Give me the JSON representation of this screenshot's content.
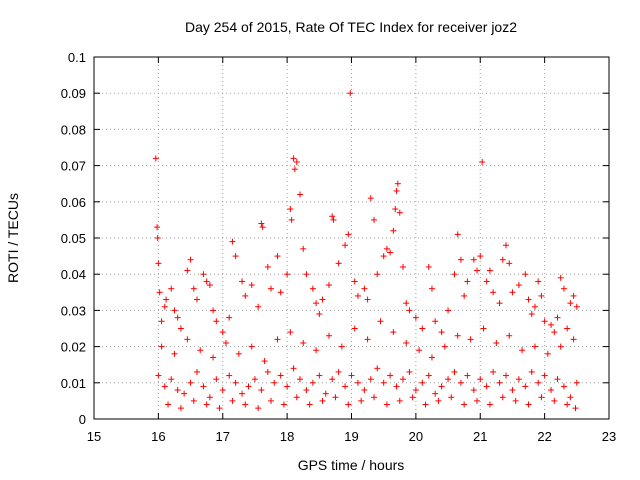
{
  "chart_data": {
    "type": "scatter",
    "title": "Day 254 of 2015, Rate Of TEC Index for receiver joz2",
    "xlabel": "GPS time / hours",
    "ylabel": "ROTI / TECUs",
    "xlim": [
      15,
      23
    ],
    "ylim": [
      0,
      0.1
    ],
    "x_ticks": [
      15,
      16,
      17,
      18,
      19,
      20,
      21,
      22,
      23
    ],
    "x_tick_labels": [
      "15",
      "16",
      "17",
      "18",
      "19",
      "20",
      "21",
      "22",
      "23"
    ],
    "y_ticks": [
      0,
      0.01,
      0.02,
      0.03,
      0.04,
      0.05,
      0.06,
      0.07,
      0.08,
      0.09,
      0.1
    ],
    "y_tick_labels": [
      "0",
      "0.01",
      "0.02",
      "0.03",
      "0.04",
      "0.05",
      "0.06",
      "0.07",
      "0.08",
      "0.09",
      "0.1"
    ],
    "grid": true,
    "marker": "+",
    "color": "#ff0000",
    "series": [
      {
        "name": "ROTI",
        "points": [
          [
            15.96,
            0.072
          ],
          [
            15.98,
            0.053
          ],
          [
            15.99,
            0.05
          ],
          [
            16.0,
            0.043
          ],
          [
            16.02,
            0.035
          ],
          [
            16.05,
            0.027
          ],
          [
            16.1,
            0.031
          ],
          [
            16.12,
            0.033
          ],
          [
            16.2,
            0.036
          ],
          [
            16.25,
            0.03
          ],
          [
            16.3,
            0.028
          ],
          [
            16.35,
            0.025
          ],
          [
            16.45,
            0.041
          ],
          [
            16.5,
            0.044
          ],
          [
            16.55,
            0.036
          ],
          [
            16.6,
            0.033
          ],
          [
            16.7,
            0.04
          ],
          [
            16.75,
            0.038
          ],
          [
            16.8,
            0.037
          ],
          [
            16.85,
            0.03
          ],
          [
            16.9,
            0.027
          ],
          [
            17.0,
            0.024
          ],
          [
            17.1,
            0.028
          ],
          [
            17.15,
            0.049
          ],
          [
            17.2,
            0.045
          ],
          [
            17.3,
            0.038
          ],
          [
            17.35,
            0.034
          ],
          [
            17.45,
            0.037
          ],
          [
            17.55,
            0.031
          ],
          [
            17.6,
            0.054
          ],
          [
            17.62,
            0.053
          ],
          [
            17.7,
            0.042
          ],
          [
            17.75,
            0.036
          ],
          [
            17.85,
            0.045
          ],
          [
            17.9,
            0.035
          ],
          [
            18.0,
            0.04
          ],
          [
            18.05,
            0.058
          ],
          [
            18.07,
            0.055
          ],
          [
            18.1,
            0.072
          ],
          [
            18.12,
            0.069
          ],
          [
            18.15,
            0.071
          ],
          [
            18.2,
            0.062
          ],
          [
            18.25,
            0.047
          ],
          [
            18.3,
            0.04
          ],
          [
            18.4,
            0.036
          ],
          [
            18.45,
            0.032
          ],
          [
            18.5,
            0.029
          ],
          [
            18.55,
            0.033
          ],
          [
            18.65,
            0.037
          ],
          [
            18.7,
            0.056
          ],
          [
            18.72,
            0.055
          ],
          [
            18.8,
            0.043
          ],
          [
            18.9,
            0.048
          ],
          [
            18.95,
            0.051
          ],
          [
            18.98,
            0.09
          ],
          [
            19.05,
            0.038
          ],
          [
            19.1,
            0.034
          ],
          [
            19.2,
            0.036
          ],
          [
            19.25,
            0.033
          ],
          [
            19.3,
            0.061
          ],
          [
            19.35,
            0.055
          ],
          [
            19.4,
            0.04
          ],
          [
            19.5,
            0.045
          ],
          [
            19.55,
            0.047
          ],
          [
            19.6,
            0.046
          ],
          [
            19.65,
            0.052
          ],
          [
            19.68,
            0.058
          ],
          [
            19.7,
            0.063
          ],
          [
            19.72,
            0.065
          ],
          [
            19.75,
            0.057
          ],
          [
            19.8,
            0.042
          ],
          [
            19.85,
            0.032
          ],
          [
            19.9,
            0.03
          ],
          [
            20.0,
            0.028
          ],
          [
            20.1,
            0.025
          ],
          [
            20.2,
            0.042
          ],
          [
            20.25,
            0.036
          ],
          [
            20.3,
            0.027
          ],
          [
            20.4,
            0.024
          ],
          [
            20.5,
            0.03
          ],
          [
            20.6,
            0.04
          ],
          [
            20.65,
            0.051
          ],
          [
            20.7,
            0.044
          ],
          [
            20.75,
            0.034
          ],
          [
            20.8,
            0.038
          ],
          [
            20.9,
            0.044
          ],
          [
            20.95,
            0.041
          ],
          [
            21.0,
            0.045
          ],
          [
            21.03,
            0.071
          ],
          [
            21.1,
            0.038
          ],
          [
            21.15,
            0.041
          ],
          [
            21.2,
            0.035
          ],
          [
            21.3,
            0.032
          ],
          [
            21.35,
            0.044
          ],
          [
            21.4,
            0.048
          ],
          [
            21.45,
            0.043
          ],
          [
            21.5,
            0.035
          ],
          [
            21.6,
            0.037
          ],
          [
            21.7,
            0.04
          ],
          [
            21.75,
            0.033
          ],
          [
            21.8,
            0.029
          ],
          [
            21.85,
            0.031
          ],
          [
            21.9,
            0.038
          ],
          [
            21.95,
            0.034
          ],
          [
            22.0,
            0.027
          ],
          [
            22.1,
            0.026
          ],
          [
            22.15,
            0.024
          ],
          [
            22.2,
            0.028
          ],
          [
            22.25,
            0.039
          ],
          [
            22.3,
            0.036
          ],
          [
            22.35,
            0.025
          ],
          [
            22.4,
            0.032
          ],
          [
            22.45,
            0.034
          ],
          [
            22.5,
            0.031
          ],
          [
            16.0,
            0.012
          ],
          [
            16.1,
            0.009
          ],
          [
            16.2,
            0.011
          ],
          [
            16.3,
            0.008
          ],
          [
            16.4,
            0.007
          ],
          [
            16.5,
            0.01
          ],
          [
            16.6,
            0.013
          ],
          [
            16.7,
            0.009
          ],
          [
            16.8,
            0.006
          ],
          [
            16.9,
            0.011
          ],
          [
            17.0,
            0.008
          ],
          [
            17.1,
            0.012
          ],
          [
            17.2,
            0.01
          ],
          [
            17.3,
            0.007
          ],
          [
            17.4,
            0.009
          ],
          [
            17.5,
            0.011
          ],
          [
            17.6,
            0.008
          ],
          [
            17.7,
            0.013
          ],
          [
            17.8,
            0.01
          ],
          [
            17.9,
            0.012
          ],
          [
            18.0,
            0.009
          ],
          [
            18.1,
            0.014
          ],
          [
            18.2,
            0.011
          ],
          [
            18.3,
            0.008
          ],
          [
            18.4,
            0.01
          ],
          [
            18.5,
            0.012
          ],
          [
            18.6,
            0.007
          ],
          [
            18.7,
            0.011
          ],
          [
            18.8,
            0.013
          ],
          [
            18.9,
            0.009
          ],
          [
            19.0,
            0.012
          ],
          [
            19.1,
            0.01
          ],
          [
            19.2,
            0.008
          ],
          [
            19.3,
            0.011
          ],
          [
            19.4,
            0.014
          ],
          [
            19.5,
            0.01
          ],
          [
            19.6,
            0.012
          ],
          [
            19.7,
            0.009
          ],
          [
            19.8,
            0.011
          ],
          [
            19.9,
            0.013
          ],
          [
            20.0,
            0.008
          ],
          [
            20.1,
            0.01
          ],
          [
            20.2,
            0.012
          ],
          [
            20.3,
            0.007
          ],
          [
            20.4,
            0.009
          ],
          [
            20.5,
            0.011
          ],
          [
            20.6,
            0.013
          ],
          [
            20.7,
            0.01
          ],
          [
            20.8,
            0.012
          ],
          [
            20.9,
            0.008
          ],
          [
            21.0,
            0.011
          ],
          [
            21.1,
            0.009
          ],
          [
            21.2,
            0.013
          ],
          [
            21.3,
            0.01
          ],
          [
            21.4,
            0.012
          ],
          [
            21.5,
            0.008
          ],
          [
            21.6,
            0.011
          ],
          [
            21.7,
            0.009
          ],
          [
            21.8,
            0.013
          ],
          [
            21.9,
            0.01
          ],
          [
            22.0,
            0.012
          ],
          [
            22.1,
            0.008
          ],
          [
            22.2,
            0.011
          ],
          [
            22.3,
            0.009
          ],
          [
            22.4,
            0.006
          ],
          [
            22.5,
            0.01
          ],
          [
            16.05,
            0.02
          ],
          [
            16.25,
            0.018
          ],
          [
            16.45,
            0.022
          ],
          [
            16.65,
            0.019
          ],
          [
            16.85,
            0.017
          ],
          [
            17.05,
            0.021
          ],
          [
            17.25,
            0.018
          ],
          [
            17.45,
            0.02
          ],
          [
            17.65,
            0.016
          ],
          [
            17.85,
            0.022
          ],
          [
            18.05,
            0.024
          ],
          [
            18.25,
            0.021
          ],
          [
            18.45,
            0.019
          ],
          [
            18.65,
            0.023
          ],
          [
            18.85,
            0.02
          ],
          [
            19.05,
            0.025
          ],
          [
            19.25,
            0.022
          ],
          [
            19.45,
            0.027
          ],
          [
            19.65,
            0.024
          ],
          [
            19.85,
            0.021
          ],
          [
            20.05,
            0.019
          ],
          [
            20.25,
            0.017
          ],
          [
            20.45,
            0.02
          ],
          [
            20.65,
            0.023
          ],
          [
            20.85,
            0.022
          ],
          [
            21.05,
            0.025
          ],
          [
            21.25,
            0.021
          ],
          [
            21.45,
            0.023
          ],
          [
            21.65,
            0.019
          ],
          [
            21.85,
            0.02
          ],
          [
            22.05,
            0.018
          ],
          [
            22.25,
            0.02
          ],
          [
            22.45,
            0.022
          ],
          [
            16.15,
            0.004
          ],
          [
            16.35,
            0.003
          ],
          [
            16.55,
            0.005
          ],
          [
            16.75,
            0.004
          ],
          [
            16.95,
            0.003
          ],
          [
            17.15,
            0.005
          ],
          [
            17.35,
            0.004
          ],
          [
            17.55,
            0.003
          ],
          [
            17.75,
            0.005
          ],
          [
            17.95,
            0.004
          ],
          [
            18.15,
            0.006
          ],
          [
            18.35,
            0.004
          ],
          [
            18.55,
            0.005
          ],
          [
            18.75,
            0.006
          ],
          [
            18.95,
            0.004
          ],
          [
            19.15,
            0.005
          ],
          [
            19.35,
            0.006
          ],
          [
            19.55,
            0.004
          ],
          [
            19.75,
            0.005
          ],
          [
            19.95,
            0.006
          ],
          [
            20.15,
            0.004
          ],
          [
            20.35,
            0.005
          ],
          [
            20.55,
            0.006
          ],
          [
            20.75,
            0.004
          ],
          [
            20.95,
            0.005
          ],
          [
            21.15,
            0.004
          ],
          [
            21.35,
            0.006
          ],
          [
            21.55,
            0.005
          ],
          [
            21.75,
            0.004
          ],
          [
            21.95,
            0.006
          ],
          [
            22.15,
            0.005
          ],
          [
            22.35,
            0.004
          ],
          [
            22.48,
            0.003
          ]
        ]
      }
    ]
  }
}
